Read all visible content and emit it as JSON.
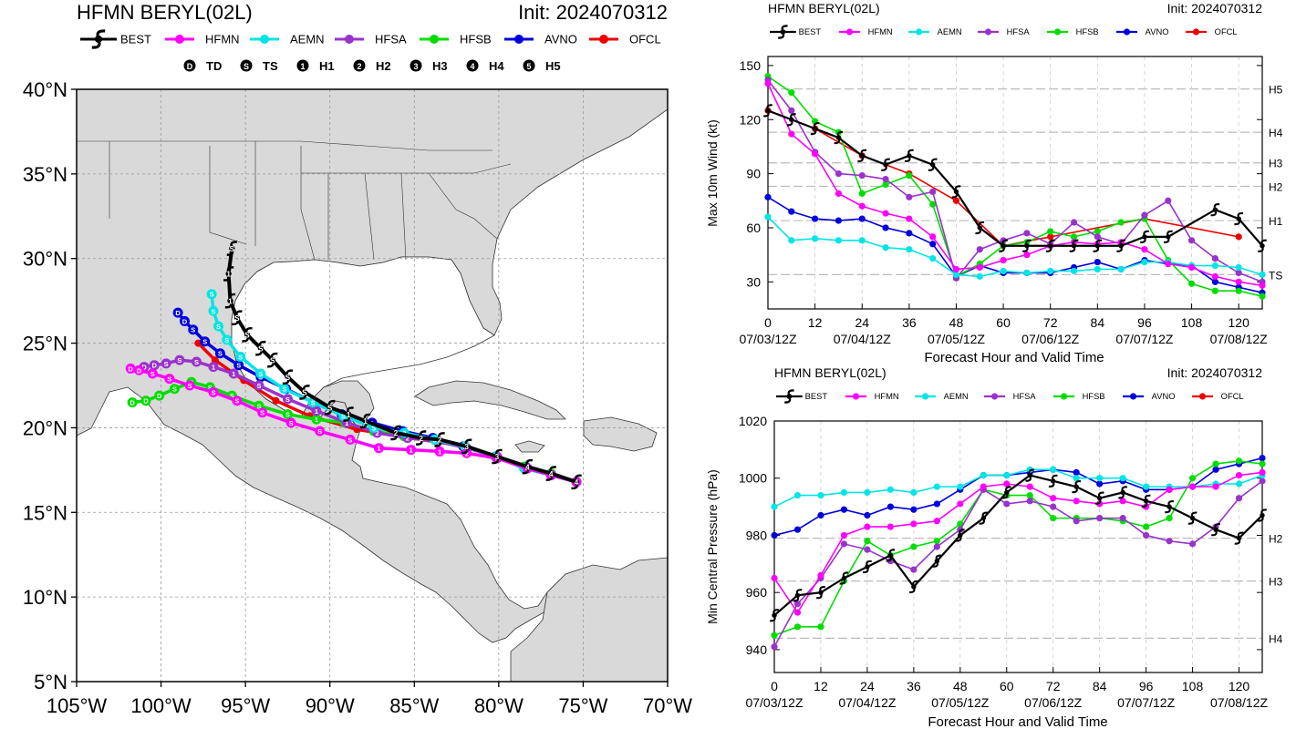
{
  "colors": {
    "BEST": "#000000",
    "HFMN": "#ff00ff",
    "AEMN": "#00e5e5",
    "HFSA": "#9933cc",
    "HFSB": "#00dd00",
    "AVNO": "#0000dd",
    "OFCL": "#ee0000",
    "land": "#d9d9d9",
    "ocean": "#ffffff"
  },
  "legend": {
    "models": [
      "BEST",
      "HFMN",
      "AEMN",
      "HFSA",
      "HFSB",
      "AVNO",
      "OFCL"
    ],
    "categories": [
      {
        "symbol": "D",
        "label": "TD"
      },
      {
        "symbol": "S",
        "label": "TS"
      },
      {
        "symbol": "1",
        "label": "H1"
      },
      {
        "symbol": "2",
        "label": "H2"
      },
      {
        "symbol": "3",
        "label": "H3"
      },
      {
        "symbol": "4",
        "label": "H4"
      },
      {
        "symbol": "5",
        "label": "H5"
      }
    ]
  },
  "track_panel": {
    "title": "HFMN BERYL(02L)",
    "init": "Init: 2024070312",
    "lat_ticks": [
      "5°N",
      "10°N",
      "15°N",
      "20°N",
      "25°N",
      "30°N",
      "35°N",
      "40°N"
    ],
    "lon_ticks": [
      "105°W",
      "100°W",
      "95°W",
      "90°W",
      "85°W",
      "80°W",
      "75°W",
      "70°W"
    ]
  },
  "wind_panel": {
    "title": "HFMN BERYL(02L)",
    "init": "Init: 2024070312",
    "ylabel": "Max 10m Wind (kt)",
    "xlabel": "Forecast Hour and Valid Time",
    "y_ticks": [
      "30",
      "60",
      "90",
      "120",
      "150"
    ],
    "x_ticks": [
      "0",
      "12",
      "24",
      "36",
      "48",
      "60",
      "72",
      "84",
      "96",
      "108",
      "120"
    ],
    "date_ticks": [
      "07/03/12Z",
      "07/04/12Z",
      "07/05/12Z",
      "07/06/12Z",
      "07/07/12Z",
      "07/08/12Z"
    ],
    "category_labels": [
      "H5",
      "H4",
      "H3",
      "H2",
      "H1",
      "TS"
    ]
  },
  "pressure_panel": {
    "title": "HFMN BERYL(02L)",
    "init": "Init: 2024070312",
    "ylabel": "Min Central Pressure (hPa)",
    "xlabel": "Forecast Hour and Valid Time",
    "y_ticks": [
      "940",
      "960",
      "980",
      "1000",
      "1020"
    ],
    "x_ticks": [
      "0",
      "12",
      "24",
      "36",
      "48",
      "60",
      "72",
      "84",
      "96",
      "108",
      "120"
    ],
    "date_ticks": [
      "07/03/12Z",
      "07/04/12Z",
      "07/05/12Z",
      "07/06/12Z",
      "07/07/12Z",
      "07/08/12Z"
    ],
    "category_labels": [
      "H2",
      "H3",
      "H4"
    ]
  },
  "chart_data": [
    {
      "type": "line",
      "title": "HFMN BERYL(02L)",
      "subtitle": "Init: 2024070312",
      "map": "track",
      "xlim": [
        -105,
        -70
      ],
      "ylim": [
        5,
        40
      ],
      "series": [
        {
          "name": "BEST",
          "lon": [
            -75.4,
            -76.9,
            -78.3,
            -80.1,
            -81.9,
            -83.5,
            -84.6,
            -86.1,
            -87.9,
            -88.9,
            -90.0,
            -91.5,
            -92.5,
            -93.4,
            -94.1,
            -94.9,
            -95.5,
            -95.9,
            -96.0,
            -95.8
          ],
          "lat": [
            16.8,
            17.3,
            17.7,
            18.3,
            18.9,
            19.3,
            19.4,
            19.7,
            20.4,
            20.8,
            21.2,
            22.1,
            23.0,
            24.0,
            24.7,
            25.5,
            26.5,
            27.5,
            29.1,
            30.6
          ],
          "cats": [
            "4",
            "4",
            "4",
            "3",
            "3",
            "2",
            "2",
            "2",
            "1",
            "1",
            "S",
            "S",
            "S",
            "S",
            "S",
            "S",
            "S",
            "1",
            "1",
            "S"
          ]
        },
        {
          "name": "HFMN",
          "lon": [
            -75.4,
            -76.9,
            -78.3,
            -80.1,
            -81.9,
            -83.5,
            -85.2,
            -87.1,
            -88.8,
            -90.6,
            -92.3,
            -94.0,
            -95.5,
            -96.9,
            -98.3,
            -99.5,
            -100.5,
            -101.3,
            -101.8
          ],
          "lat": [
            16.8,
            17.2,
            17.6,
            18.2,
            18.5,
            18.6,
            18.7,
            18.8,
            19.3,
            19.8,
            20.3,
            20.9,
            21.6,
            22.1,
            22.5,
            22.9,
            23.2,
            23.4,
            23.5
          ],
          "cats": [
            "4",
            "4",
            "4",
            "3",
            "2",
            "1",
            "1",
            "1",
            "S",
            "S",
            "S",
            "S",
            "S",
            "S",
            "S",
            "S",
            "S",
            "D",
            "D"
          ]
        },
        {
          "name": "AEMN",
          "lon": [
            -75.4,
            -76.9,
            -78.5,
            -80.2,
            -82.0,
            -83.8,
            -85.6,
            -87.4,
            -89.2,
            -91.0,
            -92.7,
            -94.1,
            -95.3,
            -96.1,
            -96.6,
            -96.9,
            -97.0
          ],
          "lat": [
            16.8,
            17.2,
            17.6,
            18.3,
            18.9,
            19.3,
            19.7,
            20.0,
            20.7,
            21.5,
            22.3,
            23.2,
            24.2,
            25.2,
            26.0,
            26.9,
            27.9
          ],
          "cats": [
            "4",
            "4",
            "4",
            "3",
            "3",
            "3",
            "2",
            "S",
            "S",
            "S",
            "S",
            "S",
            "S",
            "S",
            "S",
            "S",
            "S"
          ]
        },
        {
          "name": "HFSA",
          "lon": [
            -75.4,
            -76.9,
            -78.3,
            -80.1,
            -81.9,
            -83.6,
            -85.4,
            -87.2,
            -89.0,
            -90.8,
            -92.5,
            -94.2,
            -95.7,
            -96.9,
            -97.9,
            -98.9,
            -99.7,
            -100.4,
            -101.0
          ],
          "lat": [
            16.8,
            17.2,
            17.6,
            18.3,
            18.8,
            19.2,
            19.4,
            19.7,
            20.3,
            21.0,
            21.7,
            22.5,
            23.2,
            23.6,
            23.9,
            24.0,
            23.8,
            23.7,
            23.6
          ],
          "cats": [
            "4",
            "4",
            "4",
            "3",
            "3",
            "2",
            "2",
            "2",
            "1",
            "1",
            "S",
            "S",
            "1",
            "1",
            "S",
            "S",
            "S",
            "D",
            "D"
          ]
        },
        {
          "name": "HFSB",
          "lon": [
            -75.4,
            -76.9,
            -78.5,
            -80.2,
            -82.0,
            -83.8,
            -85.6,
            -87.4,
            -89.1,
            -90.8,
            -92.5,
            -94.2,
            -95.8,
            -97.1,
            -98.2,
            -99.2,
            -100.1,
            -100.9,
            -101.7
          ],
          "lat": [
            16.8,
            17.3,
            17.7,
            18.3,
            18.9,
            19.3,
            19.5,
            19.8,
            20.3,
            20.5,
            20.8,
            21.3,
            21.9,
            22.4,
            22.7,
            22.3,
            21.9,
            21.6,
            21.5
          ],
          "cats": [
            "4",
            "4",
            "4",
            "3",
            "3",
            "2",
            "2",
            "2",
            "1",
            "1",
            "S",
            "S",
            "S",
            "S",
            "S",
            "S",
            "D",
            "D",
            "D"
          ]
        },
        {
          "name": "AVNO",
          "lon": [
            -75.4,
            -76.9,
            -78.4,
            -80.2,
            -82.1,
            -83.9,
            -85.7,
            -87.5,
            -89.3,
            -91.0,
            -92.6,
            -94.1,
            -95.4,
            -96.5,
            -97.4,
            -98.1,
            -98.6,
            -99.0
          ],
          "lat": [
            16.8,
            17.2,
            17.7,
            18.3,
            18.9,
            19.4,
            19.8,
            20.3,
            20.8,
            21.5,
            22.3,
            23.0,
            23.7,
            24.4,
            25.1,
            25.8,
            26.3,
            26.8
          ],
          "cats": [
            "4",
            "4",
            "3",
            "3",
            "3",
            "2",
            "1",
            "1",
            "S",
            "S",
            "S",
            "S",
            "S",
            "S",
            "S",
            "S",
            "D",
            "D"
          ]
        },
        {
          "name": "OFCL",
          "lon": [
            -75.4,
            -78.3,
            -81.9,
            -85.3,
            -88.4,
            -91.2,
            -93.2,
            -95.1,
            -96.8,
            -97.8
          ],
          "lat": [
            16.8,
            17.7,
            18.9,
            19.4,
            19.9,
            20.7,
            21.6,
            22.8,
            24.0,
            25.0
          ],
          "cats": [
            "",
            "",
            "",
            "",
            "",
            "",
            "",
            "",
            "",
            ""
          ]
        }
      ]
    },
    {
      "type": "line",
      "title": "HFMN BERYL(02L)",
      "subtitle": "Init: 2024070312",
      "xlabel": "Forecast Hour and Valid Time",
      "ylabel": "Max 10m Wind (kt)",
      "xlim": [
        0,
        126
      ],
      "ylim": [
        15,
        155
      ],
      "x": [
        0,
        6,
        12,
        18,
        24,
        30,
        36,
        42,
        48,
        54,
        60,
        66,
        72,
        78,
        84,
        90,
        96,
        102,
        108,
        114,
        120,
        126
      ],
      "series": [
        {
          "name": "BEST",
          "x": [
            0,
            6,
            12,
            18,
            24,
            30,
            36,
            42,
            48,
            54,
            60,
            66,
            72,
            78,
            84,
            90,
            96,
            102,
            114,
            120,
            126
          ],
          "values": [
            125,
            120,
            115,
            110,
            100,
            95,
            100,
            95,
            80,
            60,
            50,
            50,
            50,
            50,
            50,
            50,
            55,
            55,
            70,
            65,
            50
          ]
        },
        {
          "name": "HFMN",
          "values": [
            140,
            112,
            101,
            79,
            72,
            68,
            65,
            55,
            37,
            38,
            42,
            45,
            50,
            52,
            51,
            52,
            48,
            40,
            38,
            33,
            30,
            28
          ]
        },
        {
          "name": "AEMN",
          "values": [
            66,
            53,
            54,
            53,
            53,
            49,
            48,
            43,
            34,
            33,
            36,
            35,
            36,
            36,
            37,
            37,
            41,
            41,
            39,
            39,
            38,
            34
          ]
        },
        {
          "name": "HFSA",
          "values": [
            142,
            125,
            102,
            90,
            89,
            87,
            77,
            80,
            32,
            48,
            53,
            57,
            51,
            63,
            55,
            51,
            67,
            75,
            53,
            43,
            35,
            30
          ]
        },
        {
          "name": "HFSB",
          "values": [
            144,
            135,
            119,
            113,
            79,
            84,
            89,
            73,
            33,
            40,
            50,
            52,
            58,
            55,
            58,
            63,
            65,
            42,
            29,
            25,
            25,
            22
          ]
        },
        {
          "name": "AVNO",
          "values": [
            77,
            69,
            65,
            64,
            65,
            60,
            57,
            51,
            33,
            39,
            35,
            35,
            35,
            38,
            41,
            37,
            42,
            40,
            39,
            30,
            27,
            24
          ]
        },
        {
          "name": "OFCL",
          "x": [
            0,
            12,
            24,
            36,
            48,
            60,
            72,
            96,
            120
          ],
          "values": [
            125,
            115,
            100,
            90,
            75,
            50,
            55,
            65,
            55
          ]
        }
      ],
      "category_lines": {
        "H5": 137,
        "H4": 113,
        "H3": 96,
        "H2": 83,
        "H1": 64,
        "TS": 34
      }
    },
    {
      "type": "line",
      "title": "HFMN BERYL(02L)",
      "subtitle": "Init: 2024070312",
      "xlabel": "Forecast Hour and Valid Time",
      "ylabel": "Min Central Pressure (hPa)",
      "xlim": [
        0,
        126
      ],
      "ylim": [
        932,
        1020
      ],
      "x": [
        0,
        6,
        12,
        18,
        24,
        30,
        36,
        42,
        48,
        54,
        60,
        66,
        72,
        78,
        84,
        90,
        96,
        102,
        108,
        114,
        120,
        126
      ],
      "series": [
        {
          "name": "BEST",
          "x": [
            0,
            6,
            12,
            18,
            24,
            30,
            36,
            42,
            48,
            54,
            60,
            66,
            72,
            78,
            84,
            90,
            96,
            102,
            108,
            114,
            120,
            126
          ],
          "values": [
            952,
            959,
            960,
            965,
            969,
            973,
            962,
            971,
            980,
            986,
            995,
            1001,
            999,
            997,
            993,
            995,
            992,
            990,
            986,
            982,
            979,
            987
          ]
        },
        {
          "name": "HFMN",
          "values": [
            965,
            953,
            966,
            980,
            983,
            983,
            984,
            985,
            991,
            997,
            998,
            997,
            993,
            992,
            991,
            992,
            990,
            996,
            997,
            997,
            1001,
            1002
          ]
        },
        {
          "name": "AEMN",
          "values": [
            990,
            994,
            994,
            995,
            995,
            996,
            995,
            997,
            997,
            1001,
            1001,
            1003,
            1003,
            1000,
            1000,
            1000,
            997,
            997,
            997,
            998,
            998,
            1001
          ]
        },
        {
          "name": "HFSA",
          "values": [
            941,
            956,
            965,
            977,
            975,
            971,
            968,
            976,
            982,
            996,
            991,
            992,
            990,
            985,
            986,
            986,
            980,
            978,
            977,
            983,
            993,
            999
          ]
        },
        {
          "name": "HFSB",
          "values": [
            945,
            948,
            948,
            964,
            978,
            973,
            976,
            978,
            984,
            996,
            994,
            994,
            986,
            986,
            986,
            985,
            983,
            986,
            1000,
            1005,
            1006,
            1005
          ]
        },
        {
          "name": "AVNO",
          "values": [
            980,
            982,
            987,
            989,
            987,
            990,
            989,
            991,
            996,
            1001,
            1001,
            1002,
            1003,
            1002,
            998,
            999,
            996,
            996,
            997,
            1003,
            1005,
            1007
          ]
        },
        {
          "name": "OFCL",
          "x": [],
          "values": []
        }
      ],
      "category_lines": {
        "H2": 979,
        "H3": 964,
        "H4": 944
      }
    }
  ]
}
